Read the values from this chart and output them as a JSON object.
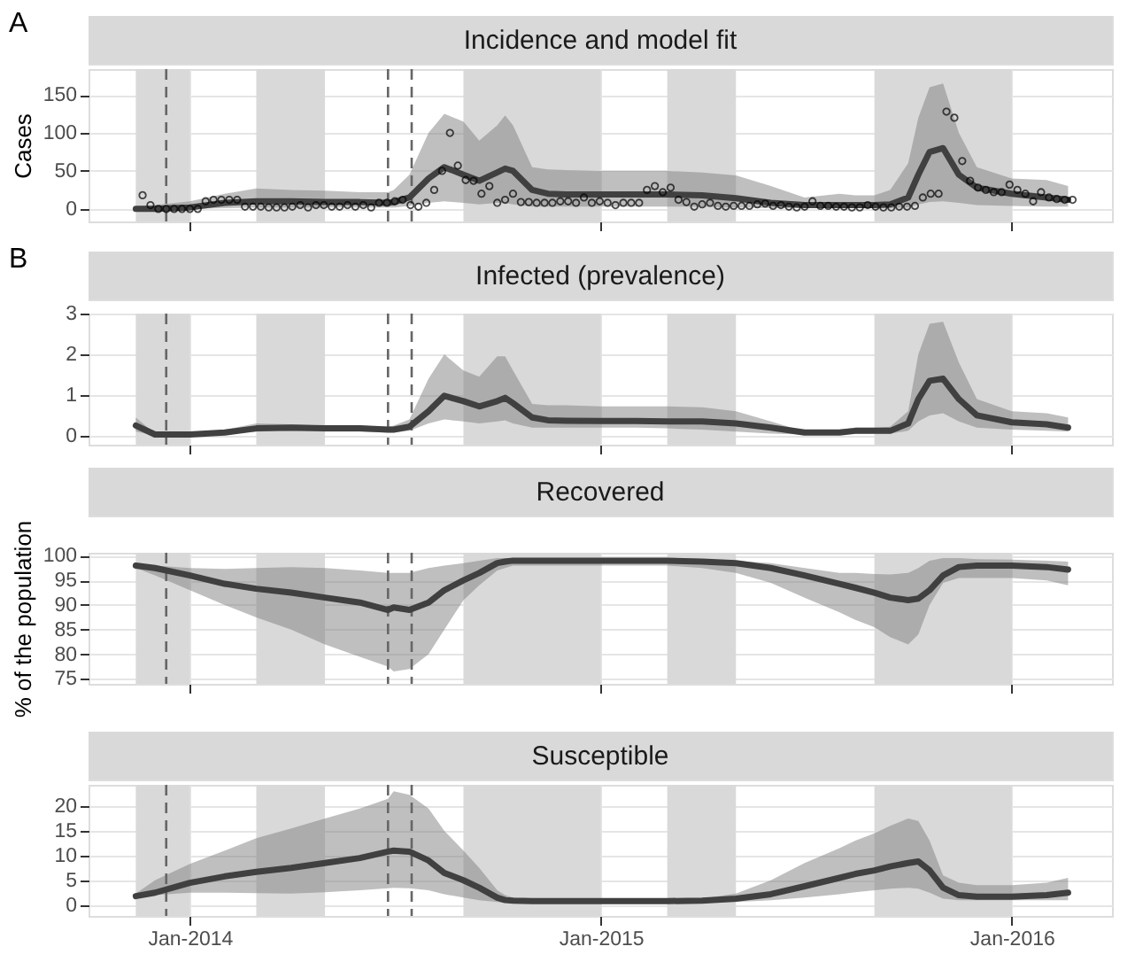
{
  "chart_data": [
    {
      "type": "line",
      "title": "Incidence and model fit",
      "ylabel": "Cases",
      "annotations": [
        "A"
      ],
      "x": [
        "2013-11-14",
        "2013-12-01",
        "2014-01-01",
        "2014-02-01",
        "2014-03-01",
        "2014-04-01",
        "2014-05-01",
        "2014-06-01",
        "2014-06-26",
        "2014-07-01",
        "2014-07-15",
        "2014-08-01",
        "2014-08-15",
        "2014-09-01",
        "2014-09-15",
        "2014-10-01",
        "2014-10-08",
        "2014-10-15",
        "2014-11-01",
        "2014-11-15",
        "2014-12-01",
        "2015-01-01",
        "2015-02-01",
        "2015-03-01",
        "2015-04-01",
        "2015-05-01",
        "2015-06-01",
        "2015-07-01",
        "2015-08-01",
        "2015-08-15",
        "2015-09-01",
        "2015-09-15",
        "2015-10-01",
        "2015-10-10",
        "2015-10-20",
        "2015-11-01",
        "2015-11-15",
        "2015-12-01",
        "2016-01-01",
        "2016-02-01",
        "2016-02-20"
      ],
      "xlim": [
        "2013-10-03",
        "2016-03-30"
      ],
      "xticks": [
        {
          "value": "2014-01-01",
          "label": null
        },
        {
          "value": "2015-01-01",
          "label": null
        },
        {
          "value": "2016-01-01",
          "label": null
        }
      ],
      "ylim": [
        -16.5,
        184
      ],
      "yticks": [
        0,
        50,
        100,
        150
      ],
      "grid": true,
      "tick_labels": "y",
      "bands": [
        {
          "axis": "x",
          "from": "2013-11-14",
          "to": "2014-01-01",
          "color": "#d9d9d9"
        },
        {
          "axis": "x",
          "from": "2014-03-01",
          "to": "2014-05-01",
          "color": "#d9d9d9"
        },
        {
          "axis": "x",
          "from": "2014-09-01",
          "to": "2015-01-01",
          "color": "#d9d9d9"
        },
        {
          "axis": "x",
          "from": "2015-03-01",
          "to": "2015-05-01",
          "color": "#d9d9d9"
        },
        {
          "axis": "x",
          "from": "2015-09-01",
          "to": "2016-01-01",
          "color": "#d9d9d9"
        }
      ],
      "ref_lines": [
        {
          "axis": "x",
          "value": "2013-12-11",
          "color": "#666666",
          "line_style": "dashed"
        },
        {
          "axis": "x",
          "value": "2014-06-26",
          "color": "#666666",
          "line_style": "dashed"
        },
        {
          "axis": "x",
          "value": "2014-07-17",
          "color": "#666666",
          "line_style": "dashed"
        }
      ],
      "series": [
        {
          "color": "#404040",
          "values": [
            0,
            0,
            2,
            8,
            10,
            10,
            9,
            9,
            8,
            9,
            15,
            40,
            55,
            45,
            37,
            48,
            53,
            50,
            25,
            20,
            19,
            19,
            19,
            19,
            18,
            14,
            8,
            5,
            5,
            5,
            5,
            6,
            15,
            45,
            75,
            80,
            45,
            28,
            20,
            15,
            12
          ],
          "lower": [
            0,
            0,
            0,
            1,
            2,
            2,
            2,
            2,
            2,
            2,
            4,
            8,
            10,
            8,
            6,
            8,
            8,
            6,
            3,
            3,
            3,
            3,
            3,
            3,
            3,
            2,
            1,
            1,
            1,
            1,
            1,
            1,
            2,
            6,
            9,
            10,
            8,
            5,
            4,
            3,
            3
          ],
          "upper": [
            3,
            5,
            10,
            20,
            27,
            25,
            24,
            22,
            22,
            25,
            45,
            100,
            125,
            115,
            90,
            110,
            123,
            110,
            55,
            52,
            51,
            50,
            50,
            50,
            48,
            44,
            30,
            15,
            20,
            18,
            18,
            25,
            60,
            120,
            160,
            165,
            100,
            55,
            40,
            38,
            30
          ]
        },
        {
          "type": "scatter",
          "color": "#000000",
          "marker": "circle",
          "x": [
            "2013-11-20",
            "2013-11-27",
            "2013-12-04",
            "2013-12-11",
            "2013-12-18",
            "2013-12-25",
            "2014-01-01",
            "2014-01-08",
            "2014-01-15",
            "2014-01-22",
            "2014-01-29",
            "2014-02-05",
            "2014-02-12",
            "2014-02-19",
            "2014-02-26",
            "2014-03-05",
            "2014-03-12",
            "2014-03-19",
            "2014-03-26",
            "2014-04-02",
            "2014-04-09",
            "2014-04-16",
            "2014-04-23",
            "2014-04-30",
            "2014-05-07",
            "2014-05-14",
            "2014-05-21",
            "2014-05-28",
            "2014-06-04",
            "2014-06-11",
            "2014-06-18",
            "2014-06-25",
            "2014-07-02",
            "2014-07-09",
            "2014-07-16",
            "2014-07-23",
            "2014-07-30",
            "2014-08-06",
            "2014-08-13",
            "2014-08-20",
            "2014-08-27",
            "2014-09-03",
            "2014-09-10",
            "2014-09-17",
            "2014-09-24",
            "2014-10-01",
            "2014-10-08",
            "2014-10-15",
            "2014-10-22",
            "2014-10-29",
            "2014-11-05",
            "2014-11-12",
            "2014-11-19",
            "2014-11-26",
            "2014-12-03",
            "2014-12-10",
            "2014-12-17",
            "2014-12-24",
            "2014-12-31",
            "2015-01-07",
            "2015-01-14",
            "2015-01-21",
            "2015-01-28",
            "2015-02-04",
            "2015-02-11",
            "2015-02-18",
            "2015-02-25",
            "2015-03-04",
            "2015-03-11",
            "2015-03-18",
            "2015-03-25",
            "2015-04-01",
            "2015-04-08",
            "2015-04-15",
            "2015-04-22",
            "2015-04-29",
            "2015-05-06",
            "2015-05-13",
            "2015-05-20",
            "2015-05-27",
            "2015-06-03",
            "2015-06-10",
            "2015-06-17",
            "2015-06-24",
            "2015-07-01",
            "2015-07-08",
            "2015-07-15",
            "2015-07-22",
            "2015-07-29",
            "2015-08-05",
            "2015-08-12",
            "2015-08-19",
            "2015-08-26",
            "2015-09-02",
            "2015-09-09",
            "2015-09-16",
            "2015-09-23",
            "2015-09-30",
            "2015-10-07",
            "2015-10-14",
            "2015-10-21",
            "2015-10-28",
            "2015-11-04",
            "2015-11-11",
            "2015-11-18",
            "2015-11-25",
            "2015-12-02",
            "2015-12-09",
            "2015-12-16",
            "2015-12-23",
            "2015-12-30",
            "2016-01-06",
            "2016-01-13",
            "2016-01-20",
            "2016-01-27",
            "2016-02-03",
            "2016-02-10",
            "2016-02-17",
            "2016-02-24"
          ],
          "values": [
            18,
            5,
            0,
            0,
            0,
            0,
            0,
            0,
            10,
            12,
            12,
            12,
            12,
            3,
            3,
            3,
            2,
            2,
            2,
            3,
            5,
            2,
            5,
            5,
            3,
            3,
            5,
            3,
            5,
            2,
            8,
            8,
            10,
            12,
            5,
            3,
            8,
            25,
            50,
            100,
            57,
            38,
            37,
            20,
            30,
            8,
            12,
            20,
            9,
            9,
            8,
            8,
            8,
            10,
            10,
            8,
            15,
            8,
            10,
            8,
            5,
            8,
            8,
            8,
            25,
            30,
            22,
            28,
            12,
            9,
            3,
            6,
            8,
            4,
            3,
            4,
            4,
            4,
            6,
            7,
            4,
            5,
            3,
            2,
            3,
            10,
            4,
            4,
            3,
            3,
            2,
            2,
            5,
            3,
            2,
            2,
            3,
            3,
            4,
            15,
            20,
            20,
            128,
            120,
            63,
            37,
            28,
            25,
            22,
            22,
            32,
            25,
            20,
            10,
            22,
            15,
            13,
            12,
            12
          ]
        }
      ]
    },
    {
      "type": "line",
      "title": "Infected (prevalence)",
      "annotations": [
        "B"
      ],
      "x": [
        "2013-11-14",
        "2013-12-01",
        "2014-01-01",
        "2014-02-01",
        "2014-03-01",
        "2014-04-01",
        "2014-05-01",
        "2014-06-01",
        "2014-06-26",
        "2014-07-01",
        "2014-07-15",
        "2014-08-01",
        "2014-08-15",
        "2014-09-01",
        "2014-09-15",
        "2014-10-01",
        "2014-10-08",
        "2014-10-15",
        "2014-11-01",
        "2014-11-15",
        "2014-12-01",
        "2015-01-01",
        "2015-02-01",
        "2015-03-01",
        "2015-04-01",
        "2015-05-01",
        "2015-06-01",
        "2015-07-01",
        "2015-08-01",
        "2015-08-15",
        "2015-09-01",
        "2015-09-15",
        "2015-10-01",
        "2015-10-10",
        "2015-10-20",
        "2015-11-01",
        "2015-11-15",
        "2015-12-01",
        "2016-01-01",
        "2016-02-01",
        "2016-02-20"
      ],
      "xlim": [
        "2013-10-03",
        "2016-03-30"
      ],
      "xticks": [
        {
          "value": "2014-01-01",
          "label": null
        },
        {
          "value": "2015-01-01",
          "label": null
        },
        {
          "value": "2016-01-01",
          "label": null
        }
      ],
      "ylim": [
        -0.22,
        3
      ],
      "yticks": [
        0,
        1,
        2,
        3
      ],
      "grid": true,
      "tick_labels": "y",
      "bands": [
        {
          "axis": "x",
          "from": "2013-11-14",
          "to": "2014-01-01",
          "color": "#d9d9d9"
        },
        {
          "axis": "x",
          "from": "2014-03-01",
          "to": "2014-05-01",
          "color": "#d9d9d9"
        },
        {
          "axis": "x",
          "from": "2014-09-01",
          "to": "2015-01-01",
          "color": "#d9d9d9"
        },
        {
          "axis": "x",
          "from": "2015-03-01",
          "to": "2015-05-01",
          "color": "#d9d9d9"
        },
        {
          "axis": "x",
          "from": "2015-09-01",
          "to": "2016-01-01",
          "color": "#d9d9d9"
        }
      ],
      "ref_lines": [
        {
          "axis": "x",
          "value": "2013-12-11",
          "color": "#666666",
          "line_style": "dashed"
        },
        {
          "axis": "x",
          "value": "2014-06-26",
          "color": "#666666",
          "line_style": "dashed"
        },
        {
          "axis": "x",
          "value": "2014-07-17",
          "color": "#666666",
          "line_style": "dashed"
        }
      ],
      "series": [
        {
          "color": "#404040",
          "values": [
            0.25,
            0.03,
            0.03,
            0.08,
            0.18,
            0.2,
            0.18,
            0.18,
            0.15,
            0.15,
            0.22,
            0.6,
            0.98,
            0.85,
            0.72,
            0.85,
            0.93,
            0.8,
            0.45,
            0.38,
            0.37,
            0.36,
            0.36,
            0.35,
            0.35,
            0.3,
            0.2,
            0.08,
            0.08,
            0.12,
            0.12,
            0.12,
            0.3,
            0.9,
            1.35,
            1.4,
            0.9,
            0.5,
            0.33,
            0.28,
            0.2
          ],
          "lower": [
            0.1,
            0.01,
            0.01,
            0.04,
            0.1,
            0.12,
            0.1,
            0.1,
            0.08,
            0.08,
            0.12,
            0.3,
            0.4,
            0.35,
            0.3,
            0.35,
            0.38,
            0.3,
            0.2,
            0.2,
            0.2,
            0.2,
            0.2,
            0.18,
            0.15,
            0.1,
            0.05,
            0.03,
            0.03,
            0.05,
            0.05,
            0.05,
            0.12,
            0.35,
            0.5,
            0.55,
            0.35,
            0.2,
            0.15,
            0.12,
            0.1
          ],
          "upper": [
            0.45,
            0.05,
            0.05,
            0.15,
            0.3,
            0.28,
            0.25,
            0.25,
            0.22,
            0.25,
            0.4,
            1.4,
            2.0,
            1.6,
            1.45,
            1.95,
            1.95,
            1.6,
            0.78,
            0.75,
            0.75,
            0.72,
            0.72,
            0.72,
            0.7,
            0.6,
            0.35,
            0.1,
            0.15,
            0.2,
            0.2,
            0.22,
            0.6,
            2.0,
            2.75,
            2.8,
            1.8,
            0.9,
            0.6,
            0.55,
            0.45
          ]
        }
      ]
    },
    {
      "type": "line",
      "title": "Recovered",
      "ylabel": "% of the population",
      "x": [
        "2013-11-14",
        "2013-12-01",
        "2014-01-01",
        "2014-02-01",
        "2014-03-01",
        "2014-04-01",
        "2014-05-01",
        "2014-06-01",
        "2014-06-26",
        "2014-07-01",
        "2014-07-15",
        "2014-08-01",
        "2014-08-15",
        "2014-09-01",
        "2014-09-15",
        "2014-10-01",
        "2014-10-08",
        "2014-10-15",
        "2014-11-01",
        "2014-11-15",
        "2014-12-01",
        "2015-01-01",
        "2015-02-01",
        "2015-03-01",
        "2015-04-01",
        "2015-05-01",
        "2015-06-01",
        "2015-07-01",
        "2015-08-01",
        "2015-08-15",
        "2015-09-01",
        "2015-09-15",
        "2015-10-01",
        "2015-10-10",
        "2015-10-20",
        "2015-11-01",
        "2015-11-15",
        "2015-12-01",
        "2016-01-01",
        "2016-02-01",
        "2016-02-20"
      ],
      "xlim": [
        "2013-10-03",
        "2016-03-30"
      ],
      "xticks": [
        {
          "value": "2014-01-01",
          "label": null
        },
        {
          "value": "2015-01-01",
          "label": null
        },
        {
          "value": "2016-01-01",
          "label": null
        }
      ],
      "ylim": [
        74,
        100.6
      ],
      "yticks": [
        75,
        80,
        85,
        90,
        95,
        100
      ],
      "grid": true,
      "tick_labels": "y",
      "bands": [
        {
          "axis": "x",
          "from": "2013-11-14",
          "to": "2014-01-01",
          "color": "#d9d9d9"
        },
        {
          "axis": "x",
          "from": "2014-03-01",
          "to": "2014-05-01",
          "color": "#d9d9d9"
        },
        {
          "axis": "x",
          "from": "2014-09-01",
          "to": "2015-01-01",
          "color": "#d9d9d9"
        },
        {
          "axis": "x",
          "from": "2015-03-01",
          "to": "2015-05-01",
          "color": "#d9d9d9"
        },
        {
          "axis": "x",
          "from": "2015-09-01",
          "to": "2016-01-01",
          "color": "#d9d9d9"
        }
      ],
      "ref_lines": [
        {
          "axis": "x",
          "value": "2013-12-11",
          "color": "#666666",
          "line_style": "dashed"
        },
        {
          "axis": "x",
          "value": "2014-06-26",
          "color": "#666666",
          "line_style": "dashed"
        },
        {
          "axis": "x",
          "value": "2014-07-17",
          "color": "#666666",
          "line_style": "dashed"
        }
      ],
      "series": [
        {
          "color": "#404040",
          "values": [
            98,
            97.5,
            96,
            94.3,
            93.3,
            92.5,
            91.5,
            90.5,
            89,
            89.5,
            89,
            90.5,
            93,
            95,
            96.5,
            98.5,
            98.8,
            99,
            99,
            99,
            99,
            99,
            99,
            99,
            98.8,
            98.5,
            97.5,
            96,
            94.3,
            93.5,
            92.5,
            91.5,
            91,
            91.3,
            93,
            96,
            97.7,
            98,
            98,
            97.7,
            97.2
          ],
          "lower": [
            97.5,
            96,
            93,
            90,
            87.5,
            85,
            82,
            79.5,
            77.5,
            76.5,
            77,
            80,
            85,
            91,
            94,
            97,
            97.5,
            98,
            98,
            98,
            98,
            98,
            98,
            98,
            97.5,
            96.5,
            94.5,
            91.5,
            88.5,
            87,
            85.5,
            83.5,
            82,
            84,
            90,
            94.5,
            95.5,
            95.5,
            95.5,
            95,
            94
          ],
          "upper": [
            98.5,
            98,
            97.5,
            97.3,
            97.5,
            97.7,
            97.5,
            97,
            96.5,
            96.5,
            96.5,
            97.5,
            98,
            98.5,
            99,
            99.5,
            99.5,
            99.5,
            99.5,
            99.5,
            99.5,
            99.5,
            99.5,
            99.5,
            99.2,
            99,
            98.5,
            97.5,
            96.5,
            96.5,
            96.3,
            96.2,
            96.5,
            97.5,
            99,
            99.5,
            99.5,
            99.3,
            99.2,
            99,
            98.8
          ]
        }
      ]
    },
    {
      "type": "line",
      "title": "Susceptible",
      "x": [
        "2013-11-14",
        "2013-12-01",
        "2014-01-01",
        "2014-02-01",
        "2014-03-01",
        "2014-04-01",
        "2014-05-01",
        "2014-06-01",
        "2014-06-26",
        "2014-07-01",
        "2014-07-15",
        "2014-08-01",
        "2014-08-15",
        "2014-09-01",
        "2014-09-15",
        "2014-10-01",
        "2014-10-08",
        "2014-10-15",
        "2014-11-01",
        "2014-11-15",
        "2014-12-01",
        "2015-01-01",
        "2015-02-01",
        "2015-03-01",
        "2015-04-01",
        "2015-05-01",
        "2015-06-01",
        "2015-07-01",
        "2015-08-01",
        "2015-08-15",
        "2015-09-01",
        "2015-09-15",
        "2015-10-01",
        "2015-10-10",
        "2015-10-20",
        "2015-11-01",
        "2015-11-15",
        "2015-12-01",
        "2016-01-01",
        "2016-02-01",
        "2016-02-20"
      ],
      "xlim": [
        "2013-10-03",
        "2016-03-30"
      ],
      "xticks": [
        {
          "value": "2014-01-01",
          "label": "Jan-2014"
        },
        {
          "value": "2015-01-01",
          "label": "Jan-2015"
        },
        {
          "value": "2016-01-01",
          "label": "Jan-2016"
        }
      ],
      "ylim": [
        -2.2,
        24.3
      ],
      "yticks": [
        0,
        5,
        10,
        15,
        20
      ],
      "grid": true,
      "bands": [
        {
          "axis": "x",
          "from": "2013-11-14",
          "to": "2014-01-01",
          "color": "#d9d9d9"
        },
        {
          "axis": "x",
          "from": "2014-03-01",
          "to": "2014-05-01",
          "color": "#d9d9d9"
        },
        {
          "axis": "x",
          "from": "2014-09-01",
          "to": "2015-01-01",
          "color": "#d9d9d9"
        },
        {
          "axis": "x",
          "from": "2015-03-01",
          "to": "2015-05-01",
          "color": "#d9d9d9"
        },
        {
          "axis": "x",
          "from": "2015-09-01",
          "to": "2016-01-01",
          "color": "#d9d9d9"
        }
      ],
      "ref_lines": [
        {
          "axis": "x",
          "value": "2013-12-11",
          "color": "#666666",
          "line_style": "dashed"
        },
        {
          "axis": "x",
          "value": "2014-06-26",
          "color": "#666666",
          "line_style": "dashed"
        },
        {
          "axis": "x",
          "value": "2014-07-17",
          "color": "#666666",
          "line_style": "dashed"
        }
      ],
      "series": [
        {
          "color": "#404040",
          "values": [
            1.8,
            2.5,
            4.5,
            5.8,
            6.7,
            7.5,
            8.5,
            9.5,
            10.8,
            11,
            10.8,
            9,
            6.5,
            5,
            3.5,
            1.5,
            1,
            0.9,
            0.8,
            0.8,
            0.8,
            0.8,
            0.8,
            0.8,
            0.9,
            1.3,
            2.2,
            3.8,
            5.5,
            6.3,
            7,
            7.8,
            8.5,
            8.8,
            7,
            3.5,
            2,
            1.7,
            1.7,
            2,
            2.5
          ],
          "lower": [
            1.5,
            2,
            2.5,
            2.5,
            2.4,
            2.3,
            2.6,
            3,
            3.4,
            3.5,
            3.4,
            3,
            2.2,
            1.5,
            1,
            0.6,
            0.5,
            0.5,
            0.5,
            0.5,
            0.5,
            0.5,
            0.5,
            0.5,
            0.5,
            0.6,
            1,
            1.5,
            2.2,
            2.6,
            3,
            3.3,
            3.5,
            3.3,
            2.5,
            1.3,
            1,
            1,
            1,
            1,
            1
          ],
          "upper": [
            2.3,
            5,
            8.3,
            11,
            13.5,
            15.5,
            17.5,
            19.5,
            21.5,
            23,
            22.3,
            19.5,
            15,
            11,
            7.5,
            3,
            2,
            1.5,
            1,
            1,
            1,
            1,
            1,
            1,
            1.3,
            2.3,
            5,
            8.5,
            11.5,
            13,
            14.5,
            16,
            17.5,
            17,
            13,
            6,
            4.5,
            4,
            4,
            4.5,
            5.5
          ]
        }
      ]
    }
  ]
}
